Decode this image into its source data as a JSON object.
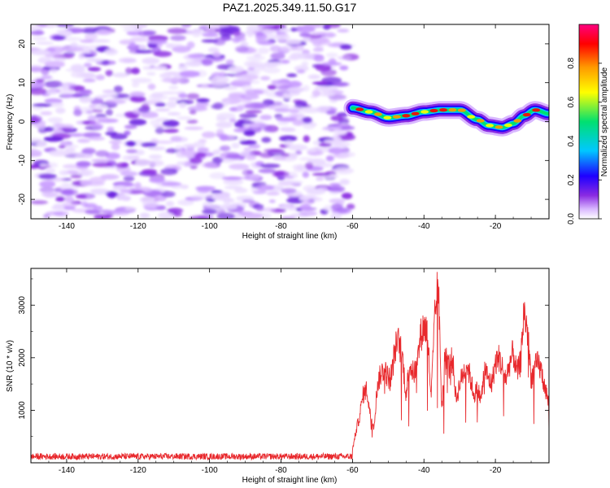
{
  "title": "PAZ1.2025.349.11.50.G17",
  "colors": {
    "snr_line": "#e8282c",
    "axis": "#000000",
    "colorbar_stops": [
      "#ffffff",
      "#d9b8ff",
      "#8a2be2",
      "#1e00ff",
      "#00c8ff",
      "#00e070",
      "#ffff00",
      "#ff9900",
      "#ff0000",
      "#ff0080"
    ]
  },
  "chart_data": [
    {
      "type": "heatmap",
      "title": "PAZ1.2025.349.11.50.G17",
      "xlabel": "Height of straight line (km)",
      "ylabel": "Frequency (Hz)",
      "xlim": [
        -150,
        -5
      ],
      "ylim": [
        -25,
        25
      ],
      "xticks": [
        -140,
        -120,
        -100,
        -80,
        -60,
        -40,
        -20
      ],
      "yticks": [
        -20,
        -10,
        0,
        10,
        20
      ],
      "noise_region_x": [
        -150,
        -60
      ],
      "signal_ridge": {
        "description_x": [
          -60,
          -55,
          -50,
          -45,
          -40,
          -35,
          -30,
          -25,
          -22,
          -18,
          -15,
          -12,
          -9,
          -5
        ],
        "frequency_hz": [
          3.5,
          2.5,
          1,
          1.5,
          2.5,
          3,
          3,
          0.5,
          -1,
          -1.5,
          -0.5,
          1.5,
          3,
          2
        ]
      },
      "colorbar": {
        "label": "Normalized spectral amplitude",
        "range": [
          0.0,
          1.0
        ],
        "ticks": [
          "0.0",
          "0.2",
          "0.4",
          "0.6",
          "0.8"
        ]
      }
    },
    {
      "type": "line",
      "xlabel": "Height of straight line (km)",
      "ylabel": "SNR (10 * v/v)",
      "xlim": [
        -150,
        -5
      ],
      "ylim": [
        0,
        3700
      ],
      "xticks": [
        -140,
        -120,
        -100,
        -80,
        -60,
        -40,
        -20
      ],
      "yticks": [
        1000,
        2000,
        3000
      ],
      "series": [
        {
          "name": "SNR",
          "x": [
            -150,
            -140,
            -130,
            -120,
            -110,
            -100,
            -90,
            -80,
            -70,
            -62,
            -60,
            -59,
            -58,
            -57,
            -56,
            -55,
            -54,
            -53,
            -52,
            -51,
            -50,
            -49,
            -48,
            -47,
            -46,
            -45,
            -44,
            -43,
            -42,
            -41,
            -40,
            -39,
            -38,
            -37,
            -36,
            -35,
            -34,
            -33,
            -32,
            -31,
            -30,
            -29,
            -28,
            -27,
            -26,
            -25,
            -24,
            -23,
            -22,
            -21,
            -20,
            -19,
            -18,
            -17,
            -16,
            -15,
            -14,
            -13,
            -12,
            -11,
            -10,
            -9,
            -8,
            -7,
            -6,
            -5
          ],
          "y": [
            100,
            100,
            100,
            100,
            100,
            100,
            100,
            100,
            100,
            100,
            250,
            600,
            900,
            1300,
            1400,
            900,
            700,
            1500,
            1700,
            1800,
            1600,
            1700,
            2200,
            2300,
            2000,
            1300,
            1900,
            1700,
            1800,
            2400,
            2600,
            2500,
            1200,
            2700,
            3500,
            1000,
            2200,
            1800,
            2000,
            1200,
            1500,
            1700,
            1900,
            1600,
            1300,
            1400,
            1200,
            1800,
            1600,
            1500,
            1900,
            2000,
            1800,
            1600,
            1900,
            2100,
            1700,
            1900,
            2900,
            2500,
            1600,
            1800,
            1900,
            1700,
            1400,
            1100
          ]
        }
      ]
    }
  ]
}
